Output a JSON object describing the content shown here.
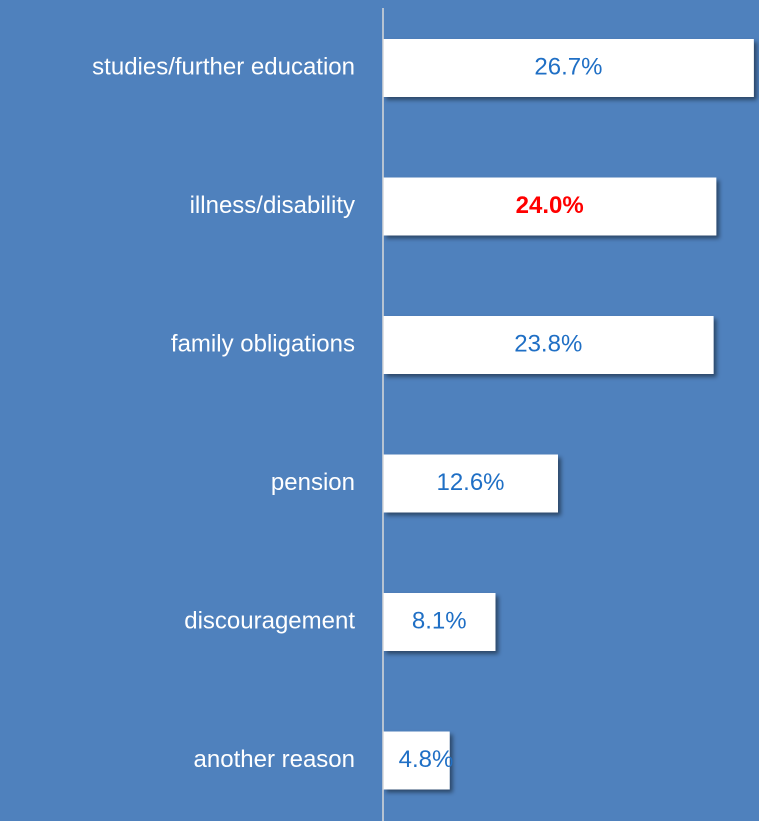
{
  "chart_data": {
    "type": "barh",
    "categories": [
      "studies/further education",
      "illness/disability",
      "family obligations",
      "pension",
      "discouragement",
      "another reason"
    ],
    "values": [
      26.7,
      24.0,
      23.8,
      12.6,
      8.1,
      4.8
    ],
    "value_labels": [
      "26.7%",
      "24.0%",
      "23.8%",
      "12.6%",
      "8.1%",
      "4.8%"
    ],
    "color": "#ffffff",
    "background": "#4f81bd",
    "label_color": "#1f6fc5",
    "highlight": 1,
    "highlight_color": "#ff0000",
    "xlim": [
      0,
      27
    ]
  }
}
